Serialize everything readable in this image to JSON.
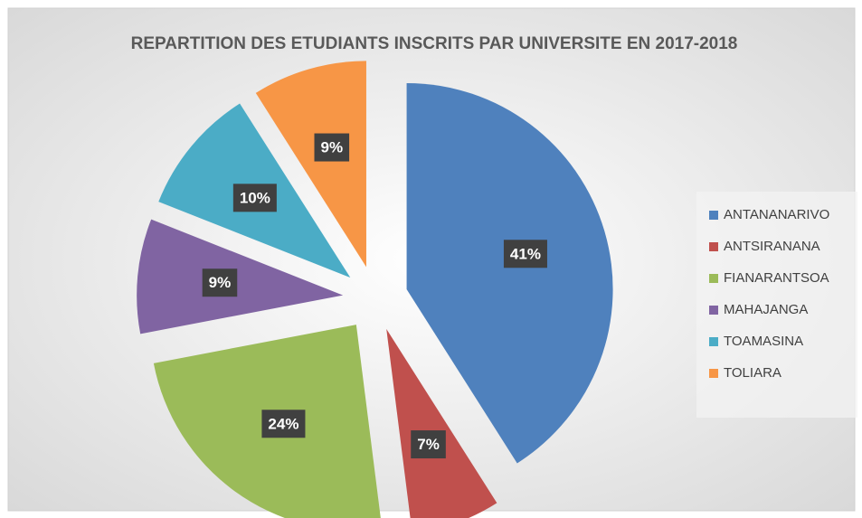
{
  "chart_data": {
    "type": "pie",
    "title": "REPARTITION DES ETUDIANTS INSCRITS PAR UNIVERSITE EN 2017-2018",
    "categories": [
      "ANTANANARIVO",
      "ANTSIRANANA",
      "FIANARANTSOA",
      "MAHAJANGA",
      "TOAMASINA",
      "TOLIARA"
    ],
    "values": [
      41,
      7,
      24,
      9,
      10,
      9
    ],
    "value_labels": [
      "41%",
      "7%",
      "24%",
      "9%",
      "10%",
      "9%"
    ],
    "colors": [
      "#4f81bd",
      "#c0504d",
      "#9bbb59",
      "#8064a2",
      "#4bacc6",
      "#f79646"
    ],
    "legend": "right"
  }
}
